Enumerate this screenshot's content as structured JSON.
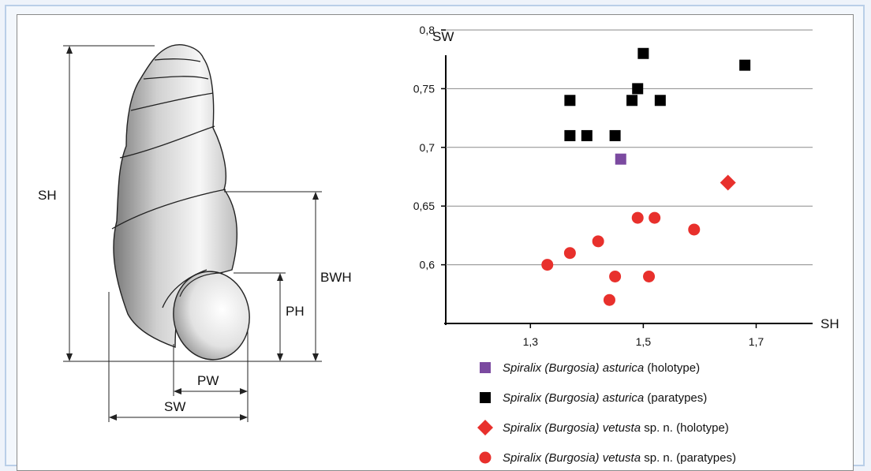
{
  "diagram": {
    "labels": {
      "sh": "SH",
      "bwh": "BWH",
      "ph": "PH",
      "pw": "PW",
      "sw": "SW"
    }
  },
  "chart_data": {
    "type": "scatter",
    "xlabel": "SH",
    "ylabel": "SW",
    "xlim": [
      1.15,
      1.8
    ],
    "ylim": [
      0.55,
      0.8
    ],
    "x_ticks": [
      "1,3",
      "1,5",
      "1,7"
    ],
    "x_tick_values": [
      1.3,
      1.5,
      1.7
    ],
    "y_ticks": [
      "0,6",
      "0,65",
      "0,7",
      "0,75",
      "0,8"
    ],
    "y_tick_values": [
      0.6,
      0.65,
      0.7,
      0.75,
      0.8
    ],
    "grid": "horizontal",
    "legend_position": "bottom",
    "series": [
      {
        "name_parts": [
          {
            "text": "Spiralix (Burgosia) asturica",
            "italic": true
          },
          {
            "text": " (holotype)",
            "italic": false
          }
        ],
        "marker": "square",
        "color": "#7b4aa0",
        "points": [
          [
            1.46,
            0.69
          ]
        ]
      },
      {
        "name_parts": [
          {
            "text": "Spiralix (Burgosia) asturica",
            "italic": true
          },
          {
            "text": " (paratypes)",
            "italic": false
          }
        ],
        "marker": "square",
        "color": "#000000",
        "points": [
          [
            1.37,
            0.74
          ],
          [
            1.37,
            0.71
          ],
          [
            1.4,
            0.71
          ],
          [
            1.45,
            0.71
          ],
          [
            1.48,
            0.74
          ],
          [
            1.49,
            0.75
          ],
          [
            1.5,
            0.78
          ],
          [
            1.53,
            0.74
          ],
          [
            1.68,
            0.77
          ]
        ]
      },
      {
        "name_parts": [
          {
            "text": "Spiralix (Burgosia) vetusta",
            "italic": true
          },
          {
            "text": " sp. n. (holotype)",
            "italic": false
          }
        ],
        "marker": "diamond",
        "color": "#e8302c",
        "points": [
          [
            1.65,
            0.67
          ]
        ]
      },
      {
        "name_parts": [
          {
            "text": "Spiralix (Burgosia) vetusta",
            "italic": true
          },
          {
            "text": " sp. n. (paratypes)",
            "italic": false
          }
        ],
        "marker": "circle",
        "color": "#e8302c",
        "points": [
          [
            1.33,
            0.6
          ],
          [
            1.37,
            0.61
          ],
          [
            1.42,
            0.62
          ],
          [
            1.45,
            0.59
          ],
          [
            1.44,
            0.57
          ],
          [
            1.49,
            0.64
          ],
          [
            1.52,
            0.64
          ],
          [
            1.51,
            0.59
          ],
          [
            1.59,
            0.63
          ]
        ]
      }
    ]
  }
}
